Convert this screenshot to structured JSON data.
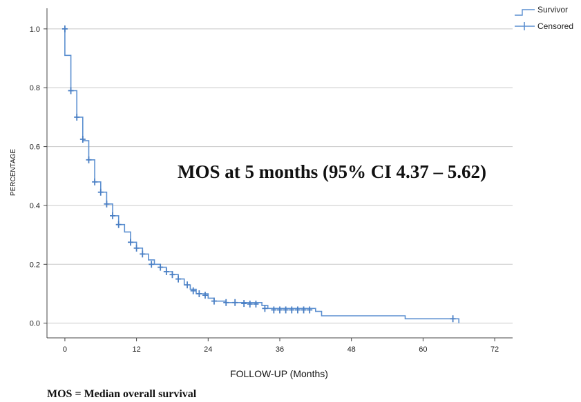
{
  "chart_data": {
    "type": "line",
    "subtype": "kaplan-meier-step",
    "xlabel": "FOLLOW-UP (Months)",
    "ylabel": "PERCENTAGE",
    "xlim": [
      -3,
      75
    ],
    "ylim": [
      -0.05,
      1.07
    ],
    "xticks": [
      0,
      12,
      24,
      36,
      48,
      60,
      72
    ],
    "yticks": [
      0.0,
      0.2,
      0.4,
      0.6,
      0.8,
      1.0
    ],
    "ytick_labels": [
      "0.0",
      "0.2",
      "0.4",
      "0.6",
      "0.8",
      "1.0"
    ],
    "grid": "horizontal",
    "legend_position": "top-right",
    "legend": [
      "Survivor",
      "Censored"
    ],
    "annotation": "MOS at 5 months (95% CI 4.37 – 5.62)",
    "footnote": "MOS = Median overall survival",
    "series_color": "#5b8fd0",
    "series": [
      {
        "name": "Survivor",
        "steps": [
          [
            0,
            1.0
          ],
          [
            0,
            0.91
          ],
          [
            1,
            0.91
          ],
          [
            1,
            0.79
          ],
          [
            2,
            0.79
          ],
          [
            2,
            0.7
          ],
          [
            3,
            0.7
          ],
          [
            3,
            0.62
          ],
          [
            4,
            0.62
          ],
          [
            4,
            0.555
          ],
          [
            5,
            0.555
          ],
          [
            5,
            0.48
          ],
          [
            6,
            0.48
          ],
          [
            6,
            0.445
          ],
          [
            7,
            0.445
          ],
          [
            7,
            0.405
          ],
          [
            8,
            0.405
          ],
          [
            8,
            0.365
          ],
          [
            9,
            0.365
          ],
          [
            9,
            0.335
          ],
          [
            10,
            0.335
          ],
          [
            10,
            0.31
          ],
          [
            11,
            0.31
          ],
          [
            11,
            0.275
          ],
          [
            12,
            0.275
          ],
          [
            12,
            0.255
          ],
          [
            13,
            0.255
          ],
          [
            13,
            0.235
          ],
          [
            14,
            0.235
          ],
          [
            14,
            0.215
          ],
          [
            15,
            0.215
          ],
          [
            15,
            0.2
          ],
          [
            16,
            0.2
          ],
          [
            16,
            0.19
          ],
          [
            17,
            0.19
          ],
          [
            17,
            0.175
          ],
          [
            18,
            0.175
          ],
          [
            18,
            0.165
          ],
          [
            19,
            0.165
          ],
          [
            19,
            0.15
          ],
          [
            20,
            0.15
          ],
          [
            20,
            0.13
          ],
          [
            21,
            0.13
          ],
          [
            21,
            0.115
          ],
          [
            22,
            0.115
          ],
          [
            22,
            0.1
          ],
          [
            24,
            0.1
          ],
          [
            24,
            0.085
          ],
          [
            25,
            0.085
          ],
          [
            25,
            0.075
          ],
          [
            27,
            0.075
          ],
          [
            27,
            0.07
          ],
          [
            33,
            0.07
          ],
          [
            33,
            0.06
          ],
          [
            34,
            0.06
          ],
          [
            34,
            0.05
          ],
          [
            42,
            0.05
          ],
          [
            42,
            0.04
          ],
          [
            43,
            0.04
          ],
          [
            43,
            0.025
          ],
          [
            57,
            0.025
          ],
          [
            57,
            0.015
          ],
          [
            66,
            0.015
          ],
          [
            66,
            0.0
          ]
        ],
        "censored": [
          [
            0,
            1.0
          ],
          [
            1,
            0.79
          ],
          [
            2,
            0.7
          ],
          [
            3,
            0.625
          ],
          [
            4,
            0.555
          ],
          [
            5,
            0.48
          ],
          [
            6,
            0.445
          ],
          [
            7,
            0.405
          ],
          [
            8,
            0.365
          ],
          [
            9,
            0.335
          ],
          [
            11,
            0.275
          ],
          [
            12,
            0.255
          ],
          [
            13,
            0.235
          ],
          [
            14.5,
            0.2
          ],
          [
            16,
            0.19
          ],
          [
            17,
            0.175
          ],
          [
            18,
            0.165
          ],
          [
            19,
            0.15
          ],
          [
            20.5,
            0.13
          ],
          [
            21.5,
            0.11
          ],
          [
            22.5,
            0.1
          ],
          [
            23.5,
            0.095
          ],
          [
            25,
            0.075
          ],
          [
            27,
            0.07
          ],
          [
            28.5,
            0.07
          ],
          [
            30,
            0.067
          ],
          [
            31,
            0.065
          ],
          [
            32,
            0.065
          ],
          [
            33.5,
            0.05
          ],
          [
            35,
            0.045
          ],
          [
            36,
            0.045
          ],
          [
            37,
            0.045
          ],
          [
            38,
            0.045
          ],
          [
            39,
            0.045
          ],
          [
            40,
            0.045
          ],
          [
            41,
            0.045
          ],
          [
            65,
            0.015
          ]
        ]
      }
    ]
  }
}
